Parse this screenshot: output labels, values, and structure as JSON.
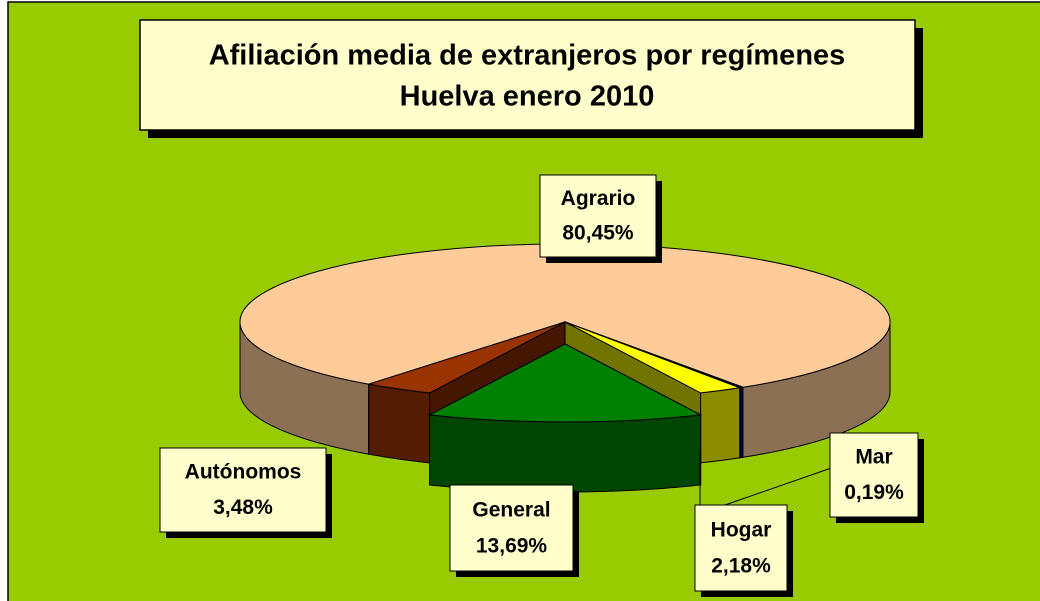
{
  "chart_data": {
    "type": "pie",
    "title": "Afiliación media de extranjeros por regímenes",
    "subtitle": "Huelva enero 2010",
    "categories": [
      "Agrario",
      "Autónomos",
      "General",
      "Hogar",
      "Mar"
    ],
    "values": [
      80.45,
      3.48,
      13.69,
      2.18,
      0.19
    ],
    "value_labels": [
      "80,45%",
      "3,48%",
      "13,69%",
      "2,18%",
      "0,19%"
    ],
    "colors": [
      "#ffcc99",
      "#993300",
      "#008000",
      "#ffff00",
      "#000080"
    ]
  }
}
